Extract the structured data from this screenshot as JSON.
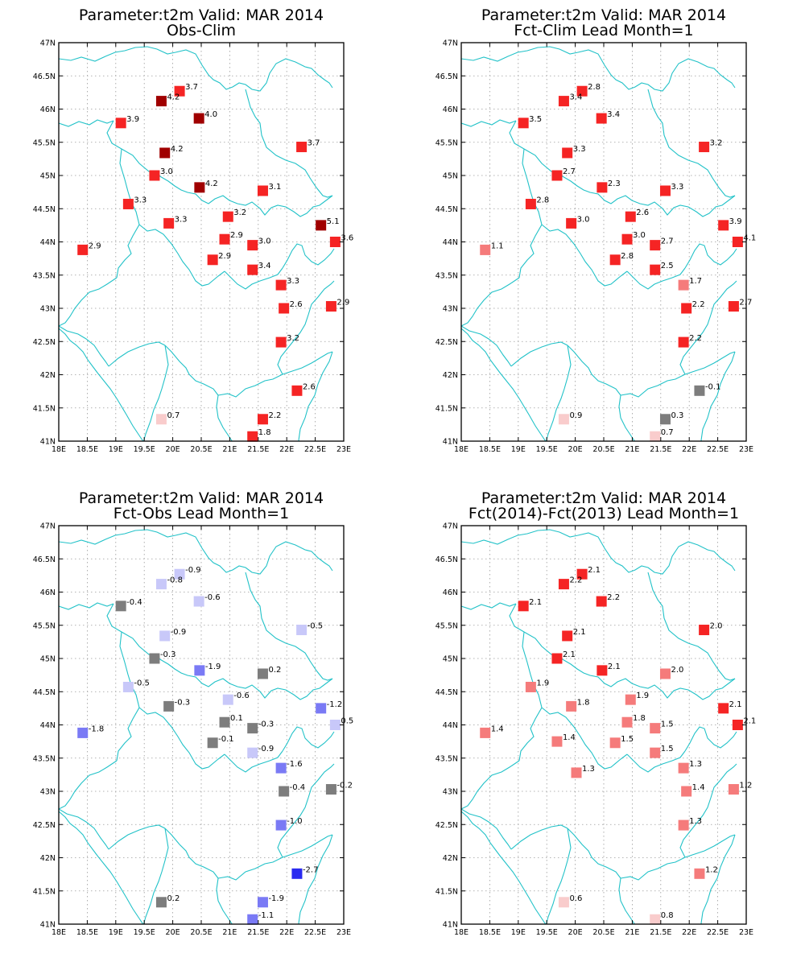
{
  "colors": {
    "border": "#22c2c8",
    "dark_red": "#a00000",
    "red": "#f52424",
    "light_red": "#f57b7b",
    "pale_red": "#f9cccc",
    "grey": "#7d7d7d",
    "pale_blue": "#c8c8f9",
    "mid_blue": "#7a7af5",
    "blue": "#2a2af0"
  },
  "axes": {
    "lon_ticks": [
      18,
      18.5,
      19,
      19.5,
      20,
      20.5,
      21,
      21.5,
      22,
      22.5,
      23
    ],
    "lon_labels": [
      "18E",
      "18.5E",
      "19E",
      "19.5E",
      "20E",
      "20.5E",
      "21E",
      "21.5E",
      "22E",
      "22.5E",
      "23E"
    ],
    "lat_ticks": [
      41,
      41.5,
      42,
      42.5,
      43,
      43.5,
      44,
      44.5,
      45,
      45.5,
      46,
      46.5,
      47
    ],
    "lat_labels": [
      "41N",
      "41.5N",
      "42N",
      "42.5N",
      "43N",
      "43.5N",
      "44N",
      "44.5N",
      "45N",
      "45.5N",
      "46N",
      "46.5N",
      "47N"
    ],
    "lon_range": [
      18,
      23
    ],
    "lat_range": [
      41,
      47
    ],
    "grid": true
  },
  "panels": [
    {
      "title_line1": "Parameter:t2m Valid: MAR 2014",
      "title_line2": "Obs-Clim",
      "stations": [
        {
          "lon": 20.12,
          "lat": 46.27,
          "label": "3.7",
          "color": "#f52424"
        },
        {
          "lon": 19.8,
          "lat": 46.12,
          "label": "4.2",
          "color": "#a00000"
        },
        {
          "lon": 20.46,
          "lat": 45.86,
          "label": "4.0",
          "color": "#a00000"
        },
        {
          "lon": 19.09,
          "lat": 45.79,
          "label": "3.9",
          "color": "#f52424"
        },
        {
          "lon": 22.26,
          "lat": 45.43,
          "label": "3.7",
          "color": "#f52424"
        },
        {
          "lon": 19.86,
          "lat": 45.34,
          "label": "4.2",
          "color": "#a00000"
        },
        {
          "lon": 19.68,
          "lat": 45.0,
          "label": "3.0",
          "color": "#f52424"
        },
        {
          "lon": 20.47,
          "lat": 44.82,
          "label": "4.2",
          "color": "#a00000"
        },
        {
          "lon": 21.58,
          "lat": 44.77,
          "label": "3.1",
          "color": "#f52424"
        },
        {
          "lon": 19.22,
          "lat": 44.57,
          "label": "3.3",
          "color": "#f52424"
        },
        {
          "lon": 20.97,
          "lat": 44.38,
          "label": "3.2",
          "color": "#f52424"
        },
        {
          "lon": 19.93,
          "lat": 44.28,
          "label": "3.3",
          "color": "#f52424"
        },
        {
          "lon": 22.6,
          "lat": 44.25,
          "label": "5.1",
          "color": "#a00000"
        },
        {
          "lon": 20.91,
          "lat": 44.04,
          "label": "2.9",
          "color": "#f52424"
        },
        {
          "lon": 22.85,
          "lat": 44.0,
          "label": "3.6",
          "color": "#f52424"
        },
        {
          "lon": 21.4,
          "lat": 43.95,
          "label": "3.0",
          "color": "#f52424"
        },
        {
          "lon": 18.42,
          "lat": 43.88,
          "label": "2.9",
          "color": "#f52424"
        },
        {
          "lon": 20.7,
          "lat": 43.73,
          "label": "2.9",
          "color": "#f52424"
        },
        {
          "lon": 21.4,
          "lat": 43.58,
          "label": "3.4",
          "color": "#f52424"
        },
        {
          "lon": 21.9,
          "lat": 43.35,
          "label": "3.3",
          "color": "#f52424"
        },
        {
          "lon": 22.78,
          "lat": 43.03,
          "label": "2.9",
          "color": "#f52424"
        },
        {
          "lon": 21.95,
          "lat": 43.0,
          "label": "2.6",
          "color": "#f52424"
        },
        {
          "lon": 21.9,
          "lat": 42.49,
          "label": "3.2",
          "color": "#f52424"
        },
        {
          "lon": 22.18,
          "lat": 41.76,
          "label": "2.6",
          "color": "#f52424"
        },
        {
          "lon": 21.58,
          "lat": 41.33,
          "label": "2.2",
          "color": "#f52424"
        },
        {
          "lon": 19.8,
          "lat": 41.33,
          "label": "0.7",
          "color": "#f9cccc"
        },
        {
          "lon": 21.4,
          "lat": 41.07,
          "label": "1.8",
          "color": "#f52424"
        }
      ]
    },
    {
      "title_line1": "Parameter:t2m Valid: MAR 2014",
      "title_line2": "Fct-Clim Lead Month=1",
      "stations": [
        {
          "lon": 20.12,
          "lat": 46.27,
          "label": "2.8",
          "color": "#f52424"
        },
        {
          "lon": 19.8,
          "lat": 46.12,
          "label": "3.4",
          "color": "#f52424"
        },
        {
          "lon": 20.46,
          "lat": 45.86,
          "label": "3.4",
          "color": "#f52424"
        },
        {
          "lon": 19.09,
          "lat": 45.79,
          "label": "3.5",
          "color": "#f52424"
        },
        {
          "lon": 22.26,
          "lat": 45.43,
          "label": "3.2",
          "color": "#f52424"
        },
        {
          "lon": 19.86,
          "lat": 45.34,
          "label": "3.3",
          "color": "#f52424"
        },
        {
          "lon": 19.68,
          "lat": 45.0,
          "label": "2.7",
          "color": "#f52424"
        },
        {
          "lon": 20.47,
          "lat": 44.82,
          "label": "2.3",
          "color": "#f52424"
        },
        {
          "lon": 21.58,
          "lat": 44.77,
          "label": "3.3",
          "color": "#f52424"
        },
        {
          "lon": 19.22,
          "lat": 44.57,
          "label": "2.8",
          "color": "#f52424"
        },
        {
          "lon": 20.97,
          "lat": 44.38,
          "label": "2.6",
          "color": "#f52424"
        },
        {
          "lon": 19.93,
          "lat": 44.28,
          "label": "3.0",
          "color": "#f52424"
        },
        {
          "lon": 22.6,
          "lat": 44.25,
          "label": "3.9",
          "color": "#f52424"
        },
        {
          "lon": 20.91,
          "lat": 44.04,
          "label": "3.0",
          "color": "#f52424"
        },
        {
          "lon": 22.85,
          "lat": 44.0,
          "label": "4.1",
          "color": "#f52424"
        },
        {
          "lon": 21.4,
          "lat": 43.95,
          "label": "2.7",
          "color": "#f52424"
        },
        {
          "lon": 18.42,
          "lat": 43.88,
          "label": "1.1",
          "color": "#f57b7b"
        },
        {
          "lon": 20.7,
          "lat": 43.73,
          "label": "2.8",
          "color": "#f52424"
        },
        {
          "lon": 21.4,
          "lat": 43.58,
          "label": "2.5",
          "color": "#f52424"
        },
        {
          "lon": 21.9,
          "lat": 43.35,
          "label": "1.7",
          "color": "#f57b7b"
        },
        {
          "lon": 22.78,
          "lat": 43.03,
          "label": "2.7",
          "color": "#f52424"
        },
        {
          "lon": 21.95,
          "lat": 43.0,
          "label": "2.2",
          "color": "#f52424"
        },
        {
          "lon": 21.9,
          "lat": 42.49,
          "label": "2.2",
          "color": "#f52424"
        },
        {
          "lon": 22.18,
          "lat": 41.76,
          "label": "-0.1",
          "color": "#7d7d7d"
        },
        {
          "lon": 21.58,
          "lat": 41.33,
          "label": "0.3",
          "color": "#7d7d7d"
        },
        {
          "lon": 19.8,
          "lat": 41.33,
          "label": "0.9",
          "color": "#f9cccc"
        },
        {
          "lon": 21.4,
          "lat": 41.07,
          "label": "0.7",
          "color": "#f9cccc"
        }
      ]
    },
    {
      "title_line1": "Parameter:t2m Valid: MAR 2014",
      "title_line2": "Fct-Obs Lead Month=1",
      "stations": [
        {
          "lon": 20.12,
          "lat": 46.27,
          "label": "-0.9",
          "color": "#c8c8f9"
        },
        {
          "lon": 19.8,
          "lat": 46.12,
          "label": "-0.8",
          "color": "#c8c8f9"
        },
        {
          "lon": 20.46,
          "lat": 45.86,
          "label": "-0.6",
          "color": "#c8c8f9"
        },
        {
          "lon": 19.09,
          "lat": 45.79,
          "label": "-0.4",
          "color": "#7d7d7d"
        },
        {
          "lon": 22.26,
          "lat": 45.43,
          "label": "-0.5",
          "color": "#c8c8f9"
        },
        {
          "lon": 19.86,
          "lat": 45.34,
          "label": "-0.9",
          "color": "#c8c8f9"
        },
        {
          "lon": 19.68,
          "lat": 45.0,
          "label": "-0.3",
          "color": "#7d7d7d"
        },
        {
          "lon": 20.47,
          "lat": 44.82,
          "label": "-1.9",
          "color": "#7a7af5"
        },
        {
          "lon": 21.58,
          "lat": 44.77,
          "label": "0.2",
          "color": "#7d7d7d"
        },
        {
          "lon": 19.22,
          "lat": 44.57,
          "label": "-0.5",
          "color": "#c8c8f9"
        },
        {
          "lon": 20.97,
          "lat": 44.38,
          "label": "-0.6",
          "color": "#c8c8f9"
        },
        {
          "lon": 19.93,
          "lat": 44.28,
          "label": "-0.3",
          "color": "#7d7d7d"
        },
        {
          "lon": 22.6,
          "lat": 44.25,
          "label": "-1.2",
          "color": "#7a7af5"
        },
        {
          "lon": 20.91,
          "lat": 44.04,
          "label": "0.1",
          "color": "#7d7d7d"
        },
        {
          "lon": 22.85,
          "lat": 44.0,
          "label": "0.5",
          "color": "#c8c8f9"
        },
        {
          "lon": 21.4,
          "lat": 43.95,
          "label": "-0.3",
          "color": "#7d7d7d"
        },
        {
          "lon": 18.42,
          "lat": 43.88,
          "label": "-1.8",
          "color": "#7a7af5"
        },
        {
          "lon": 20.7,
          "lat": 43.73,
          "label": "-0.1",
          "color": "#7d7d7d"
        },
        {
          "lon": 21.4,
          "lat": 43.58,
          "label": "-0.9",
          "color": "#c8c8f9"
        },
        {
          "lon": 21.9,
          "lat": 43.35,
          "label": "-1.6",
          "color": "#7a7af5"
        },
        {
          "lon": 22.78,
          "lat": 43.03,
          "label": "-0.2",
          "color": "#7d7d7d"
        },
        {
          "lon": 21.95,
          "lat": 43.0,
          "label": "-0.4",
          "color": "#7d7d7d"
        },
        {
          "lon": 21.9,
          "lat": 42.49,
          "label": "-1.0",
          "color": "#7a7af5"
        },
        {
          "lon": 22.18,
          "lat": 41.76,
          "label": "-2.7",
          "color": "#2a2af0"
        },
        {
          "lon": 21.58,
          "lat": 41.33,
          "label": "-1.9",
          "color": "#7a7af5"
        },
        {
          "lon": 19.8,
          "lat": 41.33,
          "label": "0.2",
          "color": "#7d7d7d"
        },
        {
          "lon": 21.4,
          "lat": 41.07,
          "label": "-1.1",
          "color": "#7a7af5"
        }
      ]
    },
    {
      "title_line1": "Parameter:t2m Valid: MAR 2014",
      "title_line2": "Fct(2014)-Fct(2013) Lead Month=1",
      "stations": [
        {
          "lon": 20.12,
          "lat": 46.27,
          "label": "2.1",
          "color": "#f52424"
        },
        {
          "lon": 19.8,
          "lat": 46.12,
          "label": "2.2",
          "color": "#f52424"
        },
        {
          "lon": 20.46,
          "lat": 45.86,
          "label": "2.2",
          "color": "#f52424"
        },
        {
          "lon": 19.09,
          "lat": 45.79,
          "label": "2.1",
          "color": "#f52424"
        },
        {
          "lon": 22.26,
          "lat": 45.43,
          "label": "2.0",
          "color": "#f52424"
        },
        {
          "lon": 19.86,
          "lat": 45.34,
          "label": "2.1",
          "color": "#f52424"
        },
        {
          "lon": 19.68,
          "lat": 45.0,
          "label": "2.1",
          "color": "#f52424"
        },
        {
          "lon": 20.47,
          "lat": 44.82,
          "label": "2.1",
          "color": "#f52424"
        },
        {
          "lon": 21.58,
          "lat": 44.77,
          "label": "2.0",
          "color": "#f57b7b"
        },
        {
          "lon": 19.22,
          "lat": 44.57,
          "label": "1.9",
          "color": "#f57b7b"
        },
        {
          "lon": 20.97,
          "lat": 44.38,
          "label": "1.9",
          "color": "#f57b7b"
        },
        {
          "lon": 19.93,
          "lat": 44.28,
          "label": "1.8",
          "color": "#f57b7b"
        },
        {
          "lon": 22.6,
          "lat": 44.25,
          "label": "2.1",
          "color": "#f52424"
        },
        {
          "lon": 20.91,
          "lat": 44.04,
          "label": "1.8",
          "color": "#f57b7b"
        },
        {
          "lon": 22.85,
          "lat": 44.0,
          "label": "2.1",
          "color": "#f52424"
        },
        {
          "lon": 21.4,
          "lat": 43.95,
          "label": "1.5",
          "color": "#f57b7b"
        },
        {
          "lon": 18.42,
          "lat": 43.88,
          "label": "1.4",
          "color": "#f57b7b"
        },
        {
          "lon": 19.68,
          "lat": 43.75,
          "label": "1.4",
          "color": "#f57b7b"
        },
        {
          "lon": 20.7,
          "lat": 43.73,
          "label": "1.5",
          "color": "#f57b7b"
        },
        {
          "lon": 21.4,
          "lat": 43.58,
          "label": "1.5",
          "color": "#f57b7b"
        },
        {
          "lon": 21.9,
          "lat": 43.35,
          "label": "1.3",
          "color": "#f57b7b"
        },
        {
          "lon": 20.02,
          "lat": 43.28,
          "label": "1.3",
          "color": "#f57b7b"
        },
        {
          "lon": 22.78,
          "lat": 43.03,
          "label": "1.2",
          "color": "#f57b7b"
        },
        {
          "lon": 21.95,
          "lat": 43.0,
          "label": "1.4",
          "color": "#f57b7b"
        },
        {
          "lon": 21.9,
          "lat": 42.49,
          "label": "1.3",
          "color": "#f57b7b"
        },
        {
          "lon": 22.18,
          "lat": 41.76,
          "label": "1.2",
          "color": "#f57b7b"
        },
        {
          "lon": 19.8,
          "lat": 41.33,
          "label": "0.6",
          "color": "#f9cccc"
        },
        {
          "lon": 21.4,
          "lat": 41.07,
          "label": "0.8",
          "color": "#f9cccc"
        }
      ]
    }
  ]
}
